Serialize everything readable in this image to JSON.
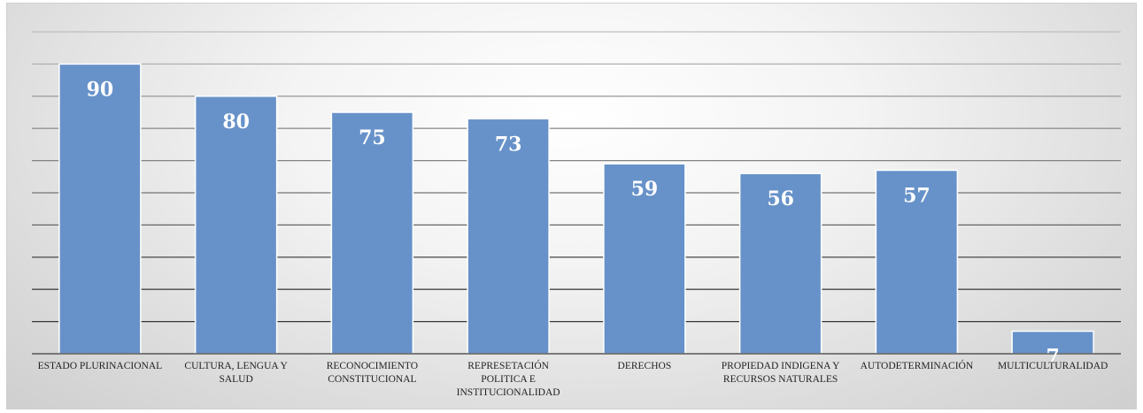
{
  "chart_data": {
    "type": "bar",
    "categories": [
      "ESTADO PLURINACIONAL",
      "CULTURA, LENGUA Y SALUD",
      "RECONOCIMIENTO CONSTITUCIONAL",
      "REPRESETACIÓN POLITICA E INSTITUCIONALIDAD",
      "DERECHOS",
      "PROPIEDAD INDIGENA Y RECURSOS NATURALES",
      "AUTODETERMINACIÓN",
      "MULTICULTURALIDAD"
    ],
    "category_lines": [
      [
        "ESTADO PLURINACIONAL"
      ],
      [
        "CULTURA, LENGUA Y",
        "SALUD"
      ],
      [
        "RECONOCIMIENTO",
        "CONSTITUCIONAL"
      ],
      [
        "REPRESETACIÓN",
        "POLITICA E",
        "INSTITUCIONALIDAD"
      ],
      [
        "DERECHOS"
      ],
      [
        "PROPIEDAD INDIGENA Y",
        "RECURSOS NATURALES"
      ],
      [
        "AUTODETERMINACIÓN"
      ],
      [
        "MULTICULTURALIDAD"
      ]
    ],
    "values": [
      90,
      80,
      75,
      73,
      59,
      56,
      57,
      7
    ],
    "data_labels": [
      "90",
      "80",
      "75",
      "73",
      "59",
      "56",
      "57",
      "7"
    ],
    "title": "",
    "xlabel": "",
    "ylabel": "",
    "ylim": [
      0,
      100
    ],
    "gridlines": [
      10,
      20,
      30,
      40,
      50,
      60,
      70,
      80,
      90,
      100
    ],
    "grid": true,
    "legend": "none",
    "bar_color": "#6792c9",
    "bar_edge_color": "#ffffff"
  }
}
